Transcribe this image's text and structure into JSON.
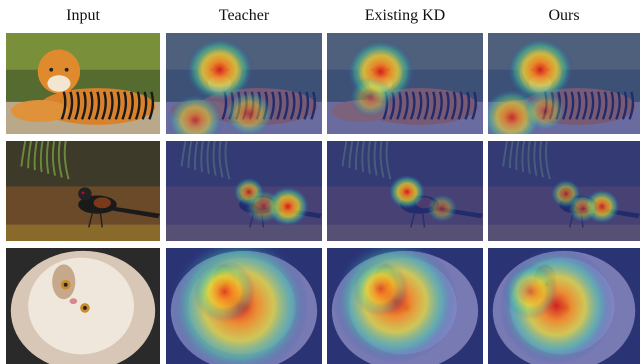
{
  "figure": {
    "column_headers": [
      "Input",
      "Teacher",
      "Existing KD",
      "Ours"
    ],
    "rows": [
      {
        "subject": "tiger"
      },
      {
        "subject": "bird"
      },
      {
        "subject": "cat"
      }
    ]
  }
}
